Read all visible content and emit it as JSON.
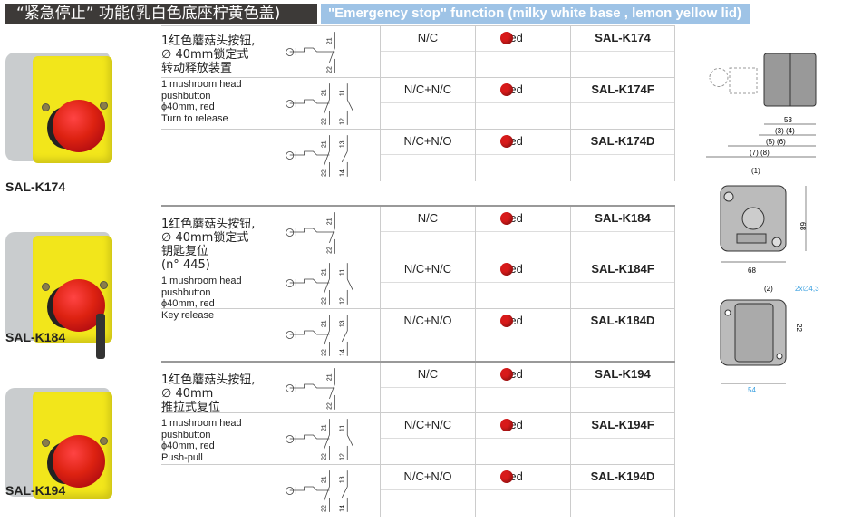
{
  "header": {
    "title_cn": "“紧急停止” 功能(乳白色底座柠黄色盖)",
    "title_en": "\"Emergency stop\" function (milky white base , lemon yellow lid)"
  },
  "colors": {
    "header_dark": "#3d3a38",
    "header_blue": "#9ec3e6",
    "lid_yellow": "#f2e61b",
    "button_red": "#d81a1a"
  },
  "products": [
    {
      "model": "SAL-K174",
      "desc_cn": [
        "1红色蘑菇头按钮,",
        "∅ 40mm锁定式",
        "转动释放装置"
      ],
      "desc_en": [
        "1 mushroom head",
        "pushbutton",
        "ϕ40mm, red",
        "Turn to release"
      ],
      "rows": [
        {
          "contacts": "N/C",
          "terminals": [
            "21",
            "22"
          ],
          "color": "Red",
          "ref": "SAL-K174"
        },
        {
          "contacts": "N/C+N/C",
          "terminals": [
            "21",
            "22",
            "11",
            "12"
          ],
          "color": "Red",
          "ref": "SAL-K174F"
        },
        {
          "contacts": "N/C+N/O",
          "terminals": [
            "21",
            "22",
            "13",
            "14"
          ],
          "color": "Red",
          "ref": "SAL-K174D"
        }
      ]
    },
    {
      "model": "SAL-K184",
      "desc_cn": [
        "1红色蘑菇头按钮,",
        "∅ 40mm锁定式",
        "钥匙复位",
        "(n°  445)"
      ],
      "desc_en": [
        "1 mushroom head",
        "pushbutton",
        "ϕ40mm, red",
        "Key release"
      ],
      "rows": [
        {
          "contacts": "N/C",
          "terminals": [
            "21",
            "22"
          ],
          "color": "Red",
          "ref": "SAL-K184"
        },
        {
          "contacts": "N/C+N/C",
          "terminals": [
            "21",
            "22",
            "11",
            "12"
          ],
          "color": "Red",
          "ref": "SAL-K184F"
        },
        {
          "contacts": "N/C+N/O",
          "terminals": [
            "21",
            "22",
            "13",
            "14"
          ],
          "color": "Red",
          "ref": "SAL-K184D"
        }
      ]
    },
    {
      "model": "SAL-K194",
      "desc_cn": [
        "1红色蘑菇头按钮,",
        "∅ 40mm",
        "推拉式复位"
      ],
      "desc_en": [
        "1 mushroom head",
        "pushbutton",
        "ϕ40mm, red",
        "Push-pull"
      ],
      "rows": [
        {
          "contacts": "N/C",
          "terminals": [
            "21",
            "22"
          ],
          "color": "Red",
          "ref": "SAL-K194"
        },
        {
          "contacts": "N/C+N/C",
          "terminals": [
            "21",
            "22",
            "11",
            "12"
          ],
          "color": "Red",
          "ref": "SAL-K194F"
        },
        {
          "contacts": "N/C+N/O",
          "terminals": [
            "21",
            "22",
            "13",
            "14"
          ],
          "color": "Red",
          "ref": "SAL-K194D"
        }
      ]
    }
  ],
  "dimensions": {
    "side": [
      "53",
      "(3) (4)",
      "(5) (6)",
      "(7) (8)"
    ],
    "front": [
      "(1)",
      "68",
      "68",
      "="
    ],
    "back": [
      "(2)",
      "2x∅4,3",
      "22",
      "54",
      "="
    ]
  }
}
